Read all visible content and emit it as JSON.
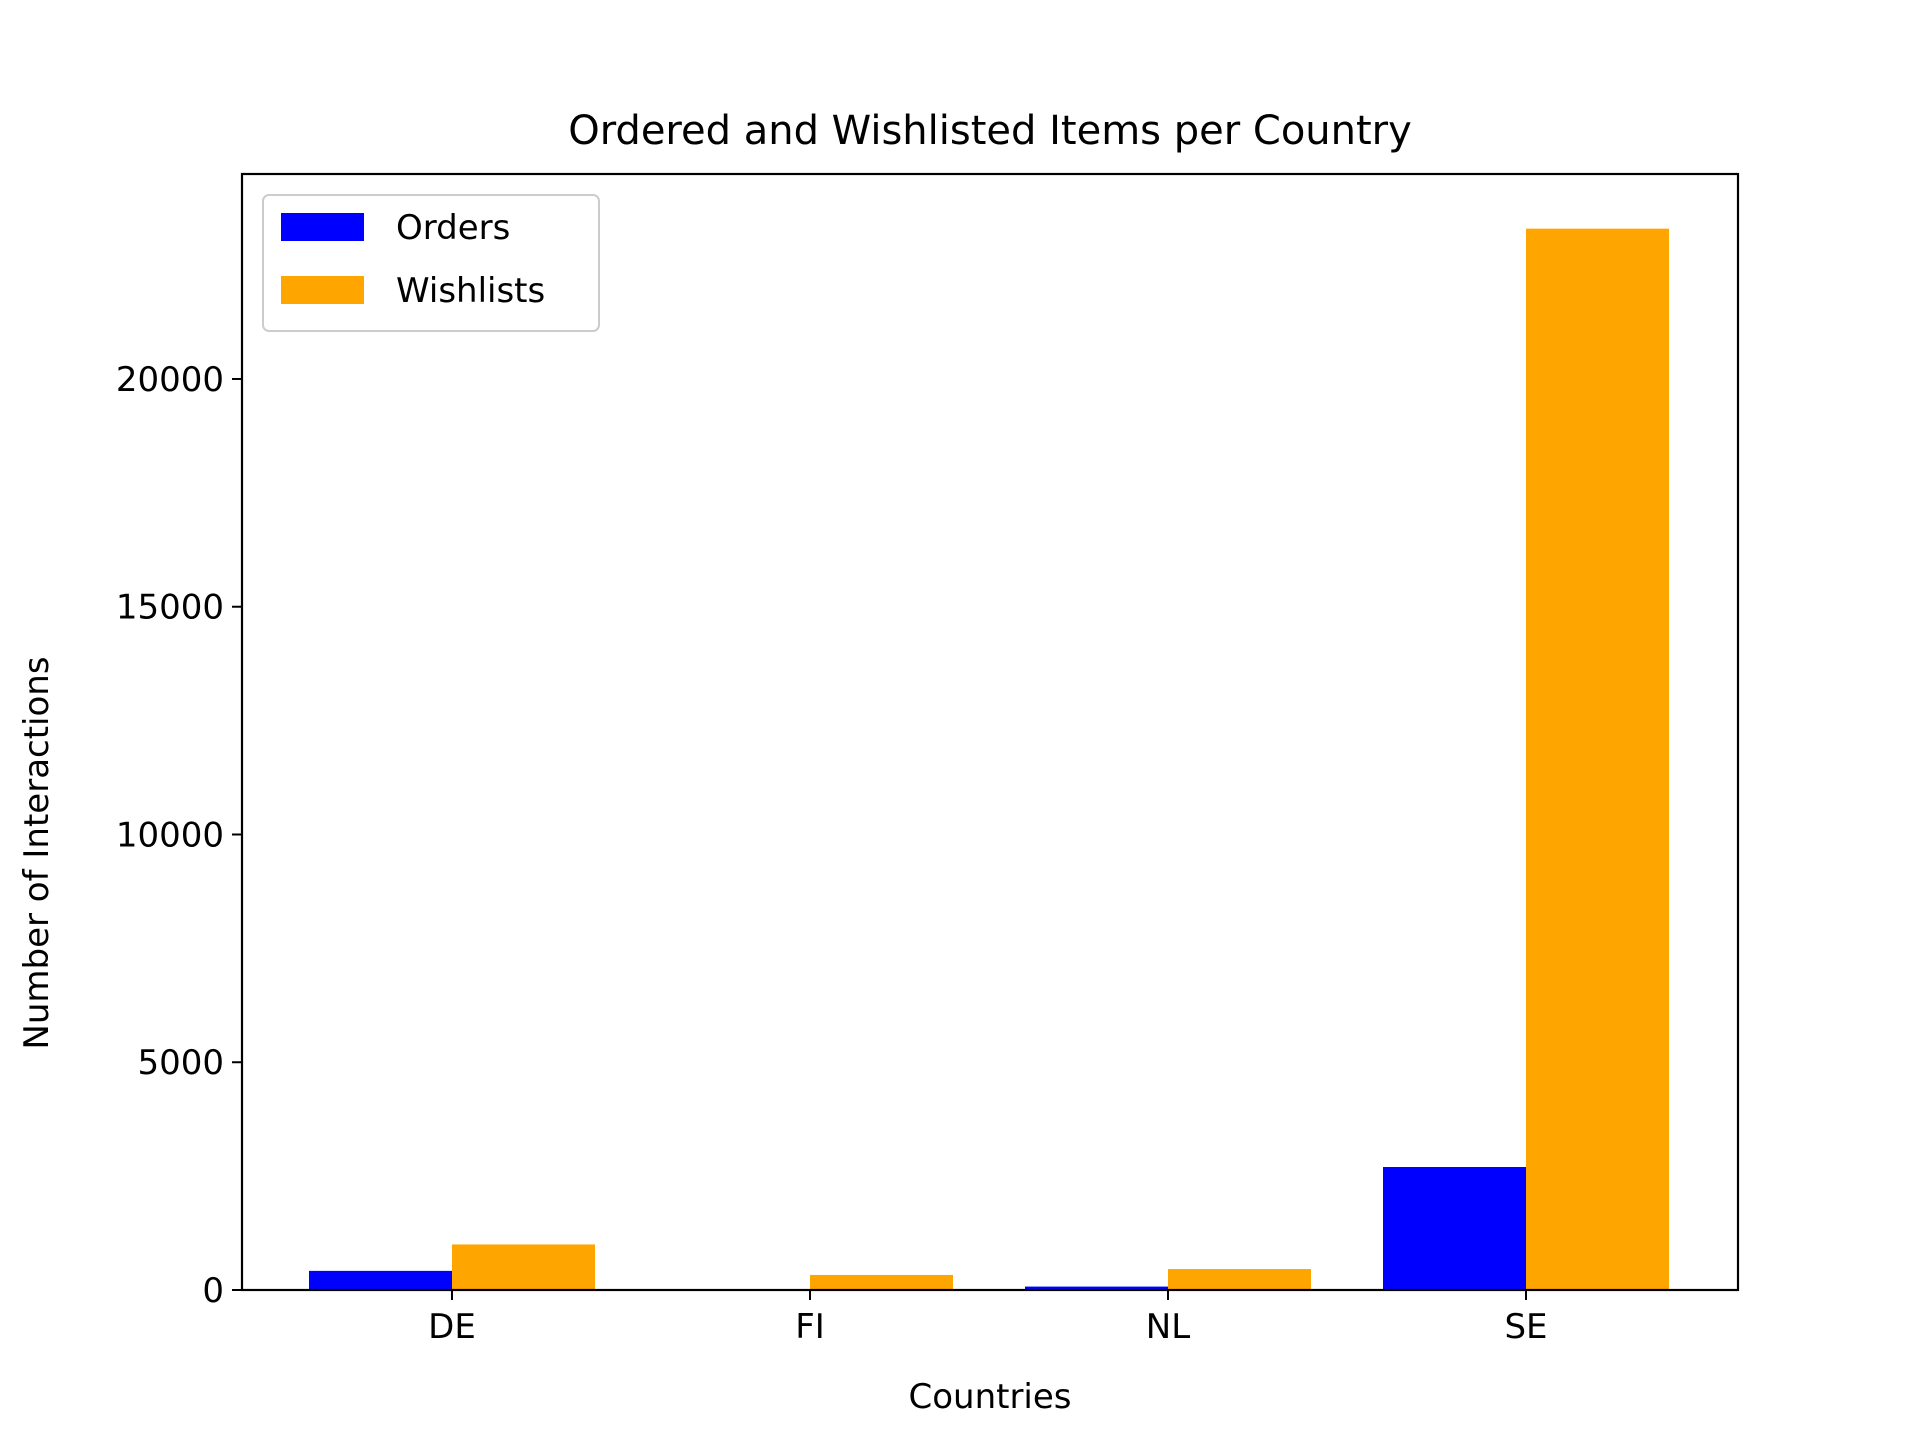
{
  "chart_data": {
    "type": "bar",
    "title": "Ordered and Wishlisted Items per Country",
    "xlabel": "Countries",
    "ylabel": "Number of Interactions",
    "categories": [
      "DE",
      "FI",
      "NL",
      "SE"
    ],
    "series": [
      {
        "name": "Orders",
        "color": "#0000ff",
        "values": [
          420,
          10,
          75,
          2700
        ]
      },
      {
        "name": "Wishlists",
        "color": "#ffa500",
        "values": [
          1000,
          330,
          460,
          23300
        ]
      }
    ],
    "ylim": [
      0,
      24500
    ],
    "yticks": [
      0,
      5000,
      10000,
      15000,
      20000
    ],
    "ytick_labels": [
      "0",
      "5000",
      "10000",
      "15000",
      "20000"
    ],
    "grid": false,
    "legend_position": "top-left"
  }
}
